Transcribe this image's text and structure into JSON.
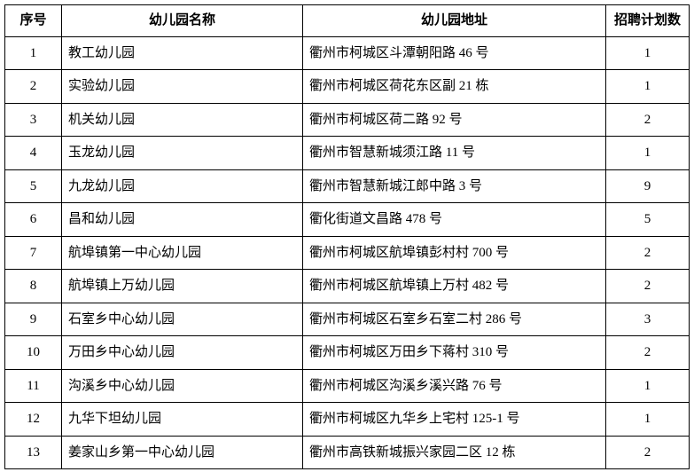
{
  "table": {
    "columns": {
      "seq": "序号",
      "name": "幼儿园名称",
      "address": "幼儿园地址",
      "plan": "招聘计划数"
    },
    "rows": [
      {
        "seq": "1",
        "name": "教工幼儿园",
        "address": "衢州市柯城区斗潭朝阳路 46 号",
        "plan": "1"
      },
      {
        "seq": "2",
        "name": "实验幼儿园",
        "address": "衢州市柯城区荷花东区副 21 栋",
        "plan": "1"
      },
      {
        "seq": "3",
        "name": "机关幼儿园",
        "address": "衢州市柯城区荷二路 92 号",
        "plan": "2"
      },
      {
        "seq": "4",
        "name": "玉龙幼儿园",
        "address": "衢州市智慧新城须江路 11 号",
        "plan": "1"
      },
      {
        "seq": "5",
        "name": "九龙幼儿园",
        "address": "衢州市智慧新城江郎中路 3 号",
        "plan": "9"
      },
      {
        "seq": "6",
        "name": "昌和幼儿园",
        "address": "衢化街道文昌路 478 号",
        "plan": "5"
      },
      {
        "seq": "7",
        "name": "航埠镇第一中心幼儿园",
        "address": "衢州市柯城区航埠镇彭村村 700 号",
        "plan": "2"
      },
      {
        "seq": "8",
        "name": "航埠镇上万幼儿园",
        "address": "衢州市柯城区航埠镇上万村 482 号",
        "plan": "2"
      },
      {
        "seq": "9",
        "name": "石室乡中心幼儿园",
        "address": "衢州市柯城区石室乡石室二村 286 号",
        "plan": "3"
      },
      {
        "seq": "10",
        "name": "万田乡中心幼儿园",
        "address": "衢州市柯城区万田乡下蒋村 310 号",
        "plan": "2"
      },
      {
        "seq": "11",
        "name": "沟溪乡中心幼儿园",
        "address": "衢州市柯城区沟溪乡溪兴路 76 号",
        "plan": "1"
      },
      {
        "seq": "12",
        "name": "九华下坦幼儿园",
        "address": "衢州市柯城区九华乡上宅村 125-1 号",
        "plan": "1"
      },
      {
        "seq": "13",
        "name": "姜家山乡第一中心幼儿园",
        "address": "衢州市高铁新城振兴家园二区 12 栋",
        "plan": "2"
      }
    ]
  }
}
